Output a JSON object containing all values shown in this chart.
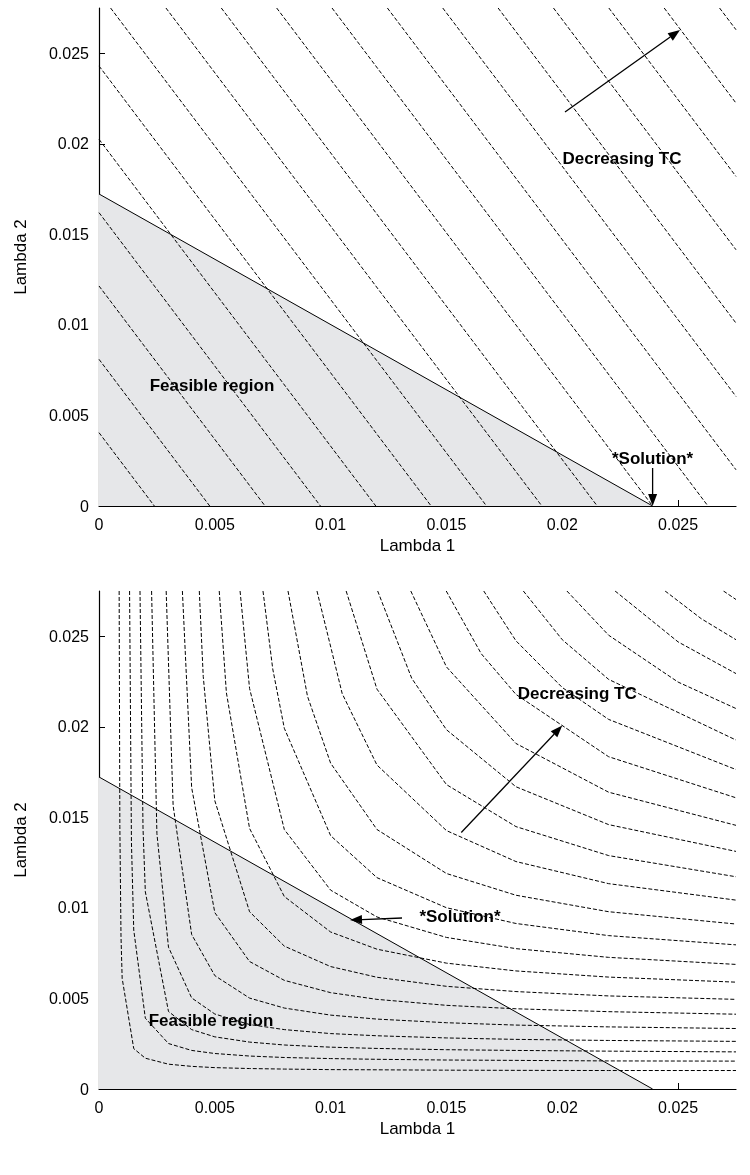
{
  "chart_data": [
    {
      "type": "line",
      "color": "#000000",
      "line_style": "dashed",
      "marker": "none",
      "xlabel": "Lambda 1",
      "ylabel": "Lambda 2",
      "xlim": [
        0,
        0.0275
      ],
      "ylim": [
        0,
        0.0275
      ],
      "xticks": [
        0,
        0.005,
        0.01,
        0.015,
        0.02,
        0.025
      ],
      "yticks": [
        0,
        0.005,
        0.01,
        0.015,
        0.02,
        0.025
      ],
      "annotations": [
        "Decreasing TC",
        {
          "text": "*Solution*",
          "x": 0.0239,
          "y": 0
        },
        "Feasible region"
      ],
      "series": [
        {
          "type": "area",
          "color": "#e6e7e9",
          "line_style": "solid",
          "x": [
            0,
            0.0239
          ],
          "values": [
            0.01723,
            0
          ]
        },
        {
          "color": "#000000",
          "x": [
            0,
            0.00239
          ],
          "values": [
            0.00405,
            0
          ]
        },
        {
          "color": "#000000",
          "x": [
            0,
            0.00478
          ],
          "values": [
            0.0081,
            0
          ]
        },
        {
          "color": "#000000",
          "x": [
            0,
            0.00717
          ],
          "values": [
            0.01215,
            0
          ]
        },
        {
          "color": "#000000",
          "x": [
            0,
            0.00956
          ],
          "values": [
            0.0162,
            0
          ]
        },
        {
          "color": "#000000",
          "x": [
            0,
            0.01195
          ],
          "values": [
            0.02025,
            0
          ]
        },
        {
          "color": "#000000",
          "x": [
            0,
            0.01434
          ],
          "values": [
            0.0243,
            0
          ]
        },
        {
          "color": "#000000",
          "x": [
            0.0005,
            0.01673
          ],
          "values": [
            0.0275,
            0
          ]
        },
        {
          "color": "#000000",
          "x": [
            0.00289,
            0.01912
          ],
          "values": [
            0.0275,
            0
          ]
        },
        {
          "color": "#000000",
          "x": [
            0.00528,
            0.02151
          ],
          "values": [
            0.0275,
            0
          ]
        },
        {
          "color": "#000000",
          "x": [
            0.00767,
            0.0239
          ],
          "values": [
            0.0275,
            0
          ]
        },
        {
          "color": "#000000",
          "x": [
            0.01006,
            0.02629
          ],
          "values": [
            0.0275,
            0
          ]
        },
        {
          "color": "#000000",
          "x": [
            0.01245,
            0.0275
          ],
          "values": [
            0.0275,
            0.002
          ]
        },
        {
          "color": "#000000",
          "x": [
            0.01484,
            0.0275
          ],
          "values": [
            0.0275,
            0.00605
          ]
        },
        {
          "color": "#000000",
          "x": [
            0.01723,
            0.0275
          ],
          "values": [
            0.0275,
            0.0101
          ]
        },
        {
          "color": "#000000",
          "x": [
            0.01962,
            0.0275
          ],
          "values": [
            0.0275,
            0.01415
          ]
        },
        {
          "color": "#000000",
          "x": [
            0.02201,
            0.0275
          ],
          "values": [
            0.0275,
            0.0182
          ]
        },
        {
          "color": "#000000",
          "x": [
            0.0244,
            0.0275
          ],
          "values": [
            0.0275,
            0.02225
          ]
        },
        {
          "color": "#000000",
          "x": [
            0.02679,
            0.0275
          ],
          "values": [
            0.0275,
            0.0263
          ]
        }
      ]
    },
    {
      "type": "line",
      "color": "#000000",
      "line_style": "dashed",
      "marker": "none",
      "xlabel": "Lambda 1",
      "ylabel": "Lambda 2",
      "xlim": [
        0,
        0.0275
      ],
      "ylim": [
        0,
        0.0275
      ],
      "xticks": [
        0,
        0.005,
        0.01,
        0.015,
        0.02,
        0.025
      ],
      "yticks": [
        0,
        0.005,
        0.01,
        0.015,
        0.02,
        0.025
      ],
      "annotations": [
        {
          "text": "Decreasing TC",
          "x": 0.02,
          "y": 0.02007
        },
        "*Solution*",
        "Feasible region"
      ],
      "series": [
        {
          "type": "area",
          "color": "#e6e7e9",
          "line_style": "solid",
          "x": [
            0,
            0.0239
          ],
          "values": [
            0.01723,
            0
          ]
        },
        {
          "color": "#000000",
          "x": [
            0.00087,
            0.0009,
            0.00095,
            0.001,
            0.0015,
            0.002,
            0.003,
            0.004,
            0.005,
            0.0065,
            0.008,
            0.01,
            0.012,
            0.015,
            0.018,
            0.022,
            0.0275
          ],
          "values": [
            0.0275,
            0.0145,
            0.00841,
            0.00611,
            0.00223,
            0.0017,
            0.00137,
            0.00125,
            0.00118,
            0.00113,
            0.0011,
            0.00107,
            0.00106,
            0.00104,
            0.00103,
            0.00102,
            0.00102
          ]
        },
        {
          "color": "#000000",
          "x": [
            0.00132,
            0.0014,
            0.0015,
            0.002,
            0.003,
            0.004,
            0.005,
            0.0065,
            0.008,
            0.01,
            0.012,
            0.015,
            0.018,
            0.022,
            0.0275
          ],
          "values": [
            0.0275,
            0.01364,
            0.00878,
            0.00391,
            0.00251,
            0.00213,
            0.00196,
            0.00182,
            0.00174,
            0.00168,
            0.00164,
            0.0016,
            0.00158,
            0.00155,
            0.00154
          ]
        },
        {
          "color": "#000000",
          "x": [
            0.00177,
            0.0019,
            0.002,
            0.003,
            0.004,
            0.005,
            0.0065,
            0.008,
            0.01,
            0.012,
            0.015,
            0.018,
            0.022,
            0.0275
          ],
          "values": [
            0.0275,
            0.01441,
            0.01089,
            0.00428,
            0.00328,
            0.00288,
            0.00259,
            0.00243,
            0.00231,
            0.00224,
            0.00217,
            0.00213,
            0.00209,
            0.00205
          ]
        },
        {
          "color": "#000000",
          "x": [
            0.00227,
            0.0025,
            0.003,
            0.004,
            0.005,
            0.0065,
            0.008,
            0.01,
            0.012,
            0.015,
            0.018,
            0.022,
            0.0275
          ],
          "values": [
            0.0275,
            0.0141,
            0.00783,
            0.00503,
            0.00414,
            0.00356,
            0.00328,
            0.00306,
            0.00294,
            0.00282,
            0.00274,
            0.00268,
            0.00263
          ]
        },
        {
          "color": "#000000",
          "x": [
            0.0029,
            0.0032,
            0.004,
            0.005,
            0.0065,
            0.008,
            0.01,
            0.012,
            0.015,
            0.018,
            0.022,
            0.0275
          ],
          "values": [
            0.0275,
            0.01565,
            0.00853,
            0.00626,
            0.00502,
            0.00447,
            0.00408,
            0.00386,
            0.00366,
            0.00353,
            0.00343,
            0.00334
          ]
        },
        {
          "color": "#000000",
          "x": [
            0.0036,
            0.004,
            0.005,
            0.0065,
            0.008,
            0.01,
            0.012,
            0.015,
            0.018,
            0.022,
            0.0275
          ],
          "values": [
            0.0275,
            0.01664,
            0.00974,
            0.00704,
            0.006,
            0.00532,
            0.00495,
            0.00462,
            0.00443,
            0.00427,
            0.00413
          ]
        },
        {
          "color": "#000000",
          "x": [
            0.00433,
            0.0045,
            0.005,
            0.0065,
            0.008,
            0.01,
            0.012,
            0.015,
            0.018,
            0.022,
            0.0275
          ],
          "values": [
            0.0275,
            0.02278,
            0.01592,
            0.00979,
            0.00789,
            0.00676,
            0.00617,
            0.00567,
            0.00538,
            0.00514,
            0.00495
          ]
        },
        {
          "color": "#000000",
          "x": [
            0.00519,
            0.0055,
            0.0065,
            0.008,
            0.01,
            0.012,
            0.015,
            0.018,
            0.022,
            0.0275
          ],
          "values": [
            0.0275,
            0.02188,
            0.01439,
            0.01063,
            0.00867,
            0.00772,
            0.00695,
            0.00652,
            0.00618,
            0.0059
          ]
        },
        {
          "color": "#000000",
          "x": [
            0.00609,
            0.0065,
            0.008,
            0.01,
            0.012,
            0.015,
            0.018,
            0.022,
            0.0275
          ],
          "values": [
            0.0275,
            0.02212,
            0.01433,
            0.01098,
            0.0095,
            0.00837,
            0.00775,
            0.00727,
            0.00688
          ]
        },
        {
          "color": "#000000",
          "x": [
            0.00708,
            0.0075,
            0.008,
            0.01,
            0.012,
            0.015,
            0.018,
            0.022,
            0.0275
          ],
          "values": [
            0.0275,
            0.0232,
            0.01992,
            0.01399,
            0.01167,
            0.01001,
            0.00914,
            0.00847,
            0.00796
          ]
        },
        {
          "color": "#000000",
          "x": [
            0.00816,
            0.009,
            0.01,
            0.012,
            0.015,
            0.018,
            0.022,
            0.0275
          ],
          "values": [
            0.0275,
            0.02169,
            0.01799,
            0.01433,
            0.0119,
            0.0107,
            0.00979,
            0.00911
          ]
        },
        {
          "color": "#000000",
          "x": [
            0.00941,
            0.0105,
            0.012,
            0.015,
            0.018,
            0.022,
            0.0275
          ],
          "values": [
            0.0275,
            0.02183,
            0.01789,
            0.01427,
            0.01256,
            0.01134,
            0.01043
          ]
        },
        {
          "color": "#000000",
          "x": [
            0.01067,
            0.012,
            0.015,
            0.018,
            0.022,
            0.0275
          ],
          "values": [
            0.0275,
            0.02208,
            0.01681,
            0.01449,
            0.01289,
            0.01172
          ]
        },
        {
          "color": "#000000",
          "x": [
            0.01203,
            0.0135,
            0.015,
            0.018,
            0.022,
            0.0275
          ],
          "values": [
            0.0275,
            0.02268,
            0.01984,
            0.01669,
            0.0146,
            0.01312
          ]
        },
        {
          "color": "#000000",
          "x": [
            0.01346,
            0.015,
            0.018,
            0.022,
            0.0275
          ],
          "values": [
            0.0275,
            0.02331,
            0.01908,
            0.01639,
            0.01456
          ]
        },
        {
          "color": "#000000",
          "x": [
            0.01499,
            0.0165,
            0.018,
            0.022,
            0.0275
          ],
          "values": [
            0.0275,
            0.02404,
            0.02179,
            0.01835,
            0.01608
          ]
        },
        {
          "color": "#000000",
          "x": [
            0.01661,
            0.018,
            0.02,
            0.022,
            0.0275
          ],
          "values": [
            0.0275,
            0.02475,
            0.02217,
            0.02041,
            0.01764
          ]
        },
        {
          "color": "#000000",
          "x": [
            0.01832,
            0.02,
            0.022,
            0.0275
          ],
          "values": [
            0.0275,
            0.02481,
            0.02262,
            0.01927
          ]
        },
        {
          "color": "#000000",
          "x": [
            0.0202,
            0.022,
            0.025,
            0.0275
          ],
          "values": [
            0.0275,
            0.02506,
            0.02247,
            0.02101
          ]
        },
        {
          "color": "#000000",
          "x": [
            0.02228,
            0.025,
            0.0275
          ],
          "values": [
            0.0275,
            0.02469,
            0.02294
          ]
        },
        {
          "color": "#000000",
          "x": [
            0.02444,
            0.026,
            0.0275
          ],
          "values": [
            0.0275,
            0.02597,
            0.02481
          ]
        },
        {
          "color": "#000000",
          "x": [
            0.02696,
            0.0275
          ],
          "values": [
            0.0275,
            0.02703
          ]
        }
      ]
    }
  ]
}
